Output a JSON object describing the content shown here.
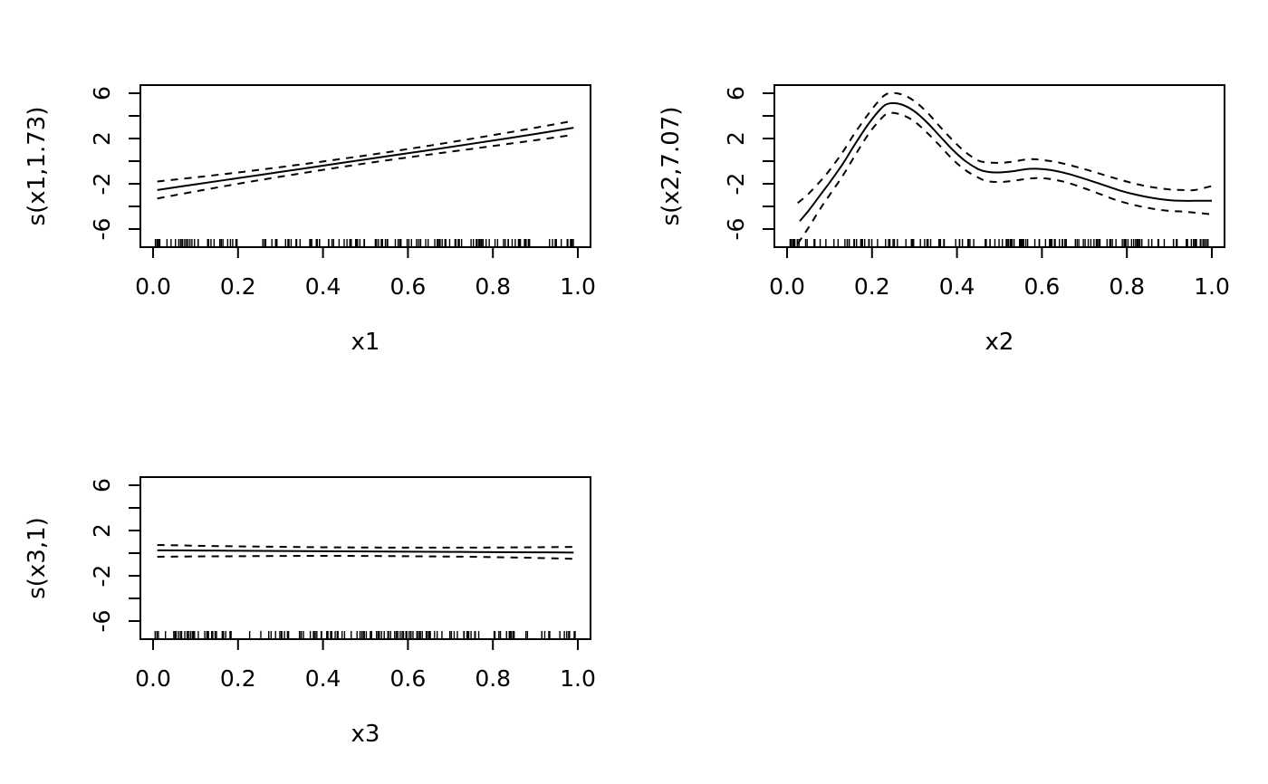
{
  "figure": {
    "background_color": "#ffffff",
    "line_color": "#000000",
    "layout": "2x2 grid, bottom-right quadrant empty"
  },
  "chart_data": [
    {
      "type": "line",
      "panel": "top-left",
      "xlabel": "x1",
      "ylabel": "s(x1,1.73)",
      "xlim": [
        0,
        1
      ],
      "ylim": [
        -7.6,
        6.7
      ],
      "grid": "off",
      "xtick_values": [
        0,
        0.2,
        0.4,
        0.6,
        0.8,
        1.0
      ],
      "xtick_labels": [
        "0.0",
        "0.2",
        "0.4",
        "0.6",
        "0.8",
        "1.0"
      ],
      "ytick_values": [
        -6,
        -4,
        -2,
        0,
        2,
        4,
        6
      ],
      "ytick_labels": [
        "-6",
        "",
        "-2",
        "",
        "2",
        "",
        "6"
      ],
      "series": [
        {
          "name": "fit",
          "style": "solid",
          "x": [
            0.01,
            0.1,
            0.2,
            0.3,
            0.4,
            0.5,
            0.6,
            0.7,
            0.8,
            0.9,
            0.99
          ],
          "y": [
            -2.55,
            -2.05,
            -1.5,
            -0.95,
            -0.4,
            0.15,
            0.7,
            1.25,
            1.82,
            2.4,
            2.95
          ]
        },
        {
          "name": "upper-ci",
          "style": "dashed",
          "x": [
            0.01,
            0.1,
            0.2,
            0.3,
            0.4,
            0.5,
            0.6,
            0.7,
            0.8,
            0.9,
            0.99
          ],
          "y": [
            -1.8,
            -1.43,
            -1.0,
            -0.53,
            -0.03,
            0.5,
            1.07,
            1.67,
            2.3,
            2.95,
            3.57
          ]
        },
        {
          "name": "lower-ci",
          "style": "dashed",
          "x": [
            0.01,
            0.1,
            0.2,
            0.3,
            0.4,
            0.5,
            0.6,
            0.7,
            0.8,
            0.9,
            0.99
          ],
          "y": [
            -3.3,
            -2.67,
            -2.0,
            -1.37,
            -0.77,
            -0.2,
            0.33,
            0.83,
            1.34,
            1.85,
            2.33
          ]
        }
      ],
      "rug": {
        "count": 160,
        "seed": 3
      }
    },
    {
      "type": "line",
      "panel": "top-right",
      "xlabel": "x2",
      "ylabel": "s(x2,7.07)",
      "xlim": [
        0,
        1
      ],
      "ylim": [
        -7.6,
        6.7
      ],
      "grid": "off",
      "xtick_values": [
        0,
        0.2,
        0.4,
        0.6,
        0.8,
        1.0
      ],
      "xtick_labels": [
        "0.0",
        "0.2",
        "0.4",
        "0.6",
        "0.8",
        "1.0"
      ],
      "ytick_values": [
        -6,
        -4,
        -2,
        0,
        2,
        4,
        6
      ],
      "ytick_labels": [
        "-6",
        "",
        "-2",
        "",
        "2",
        "",
        "6"
      ],
      "series": [
        {
          "name": "fit",
          "style": "solid",
          "x": [
            0.03,
            0.05,
            0.08,
            0.1,
            0.13,
            0.16,
            0.19,
            0.22,
            0.24,
            0.27,
            0.3,
            0.33,
            0.36,
            0.39,
            0.42,
            0.45,
            0.47,
            0.5,
            0.53,
            0.57,
            0.6,
            0.63,
            0.66,
            0.7,
            0.74,
            0.78,
            0.82,
            0.86,
            0.9,
            0.93,
            0.96,
            1.0
          ],
          "y": [
            -5.3,
            -4.4,
            -2.9,
            -1.9,
            -0.3,
            1.5,
            3.2,
            4.6,
            5.1,
            5.0,
            4.4,
            3.4,
            2.2,
            1.0,
            0.0,
            -0.7,
            -0.93,
            -1.0,
            -0.9,
            -0.68,
            -0.7,
            -0.85,
            -1.1,
            -1.55,
            -2.05,
            -2.55,
            -2.95,
            -3.25,
            -3.45,
            -3.5,
            -3.5,
            -3.5
          ]
        },
        {
          "name": "upper-ci",
          "style": "dashed",
          "x": [
            0.025,
            0.05,
            0.08,
            0.1,
            0.13,
            0.16,
            0.19,
            0.22,
            0.24,
            0.27,
            0.3,
            0.33,
            0.36,
            0.39,
            0.42,
            0.45,
            0.47,
            0.5,
            0.53,
            0.57,
            0.6,
            0.63,
            0.66,
            0.7,
            0.74,
            0.78,
            0.82,
            0.86,
            0.9,
            0.93,
            0.96,
            1.0
          ],
          "y": [
            -3.7,
            -2.9,
            -1.7,
            -0.8,
            0.75,
            2.5,
            4.1,
            5.5,
            6.0,
            5.9,
            5.3,
            4.3,
            3.05,
            1.85,
            0.8,
            0.05,
            -0.1,
            -0.15,
            -0.05,
            0.18,
            0.1,
            -0.05,
            -0.3,
            -0.7,
            -1.15,
            -1.6,
            -2.0,
            -2.3,
            -2.5,
            -2.55,
            -2.55,
            -2.2
          ]
        },
        {
          "name": "lower-ci",
          "style": "dashed",
          "x": [
            0.025,
            0.05,
            0.08,
            0.1,
            0.13,
            0.16,
            0.19,
            0.22,
            0.24,
            0.27,
            0.3,
            0.33,
            0.36,
            0.39,
            0.42,
            0.45,
            0.47,
            0.5,
            0.53,
            0.57,
            0.6,
            0.63,
            0.66,
            0.7,
            0.74,
            0.78,
            0.82,
            0.86,
            0.9,
            0.93,
            0.96,
            1.0
          ],
          "y": [
            -7.3,
            -5.9,
            -4.1,
            -3.0,
            -1.35,
            0.5,
            2.3,
            3.7,
            4.25,
            4.1,
            3.5,
            2.5,
            1.35,
            0.15,
            -0.8,
            -1.45,
            -1.76,
            -1.85,
            -1.75,
            -1.54,
            -1.5,
            -1.65,
            -1.9,
            -2.4,
            -2.95,
            -3.5,
            -3.9,
            -4.2,
            -4.4,
            -4.45,
            -4.55,
            -4.7
          ]
        }
      ],
      "rug": {
        "count": 160,
        "seed": 7
      }
    },
    {
      "type": "line",
      "panel": "bottom-left",
      "xlabel": "x3",
      "ylabel": "s(x3,1)",
      "xlim": [
        0,
        1
      ],
      "ylim": [
        -7.6,
        6.7
      ],
      "grid": "off",
      "xtick_values": [
        0,
        0.2,
        0.4,
        0.6,
        0.8,
        1.0
      ],
      "xtick_labels": [
        "0.0",
        "0.2",
        "0.4",
        "0.6",
        "0.8",
        "1.0"
      ],
      "ytick_values": [
        -6,
        -4,
        -2,
        0,
        2,
        4,
        6
      ],
      "ytick_labels": [
        "-6",
        "",
        "-2",
        "",
        "2",
        "",
        "6"
      ],
      "series": [
        {
          "name": "fit",
          "style": "solid",
          "x": [
            0.01,
            0.1,
            0.2,
            0.3,
            0.4,
            0.5,
            0.6,
            0.7,
            0.8,
            0.9,
            0.99
          ],
          "y": [
            0.25,
            0.23,
            0.21,
            0.19,
            0.17,
            0.15,
            0.13,
            0.11,
            0.09,
            0.07,
            0.05
          ]
        },
        {
          "name": "upper-ci",
          "style": "dashed",
          "x": [
            0.01,
            0.1,
            0.2,
            0.3,
            0.4,
            0.5,
            0.6,
            0.7,
            0.8,
            0.9,
            0.99
          ],
          "y": [
            0.72,
            0.66,
            0.6,
            0.56,
            0.52,
            0.5,
            0.49,
            0.49,
            0.5,
            0.52,
            0.55
          ]
        },
        {
          "name": "lower-ci",
          "style": "dashed",
          "x": [
            0.01,
            0.1,
            0.2,
            0.3,
            0.4,
            0.5,
            0.6,
            0.7,
            0.8,
            0.9,
            0.99
          ],
          "y": [
            -0.32,
            -0.29,
            -0.27,
            -0.25,
            -0.24,
            -0.25,
            -0.27,
            -0.3,
            -0.35,
            -0.42,
            -0.5
          ]
        }
      ],
      "rug": {
        "count": 160,
        "seed": 11
      }
    }
  ]
}
